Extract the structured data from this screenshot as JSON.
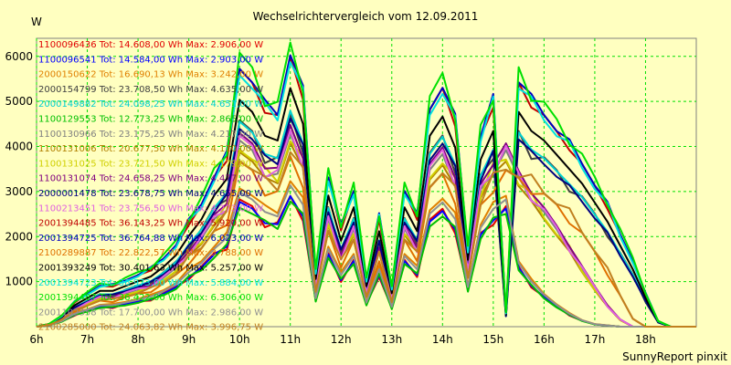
{
  "chart_data": {
    "type": "line",
    "title": "Wechselrichtervergleich vom 12.09.2011",
    "ylabel": "W",
    "footer": "SunnyReport pinxit",
    "xlim": [
      6,
      19
    ],
    "ylim": [
      0,
      6400
    ],
    "grid": true,
    "legend_position": "top-left, overlaid",
    "x_ticks": [
      6,
      7,
      8,
      9,
      10,
      11,
      12,
      13,
      14,
      15,
      16,
      17,
      18
    ],
    "x_tick_labels": [
      "6h",
      "7h",
      "8h",
      "9h",
      "10h",
      "11h",
      "12h",
      "13h",
      "14h",
      "15h",
      "16h",
      "17h",
      "18h"
    ],
    "y_ticks": [
      1000,
      2000,
      3000,
      4000,
      5000,
      6000
    ],
    "y_tick_labels": [
      "1000",
      "2000",
      "3000",
      "4000",
      "5000",
      "6000"
    ],
    "colors": {
      "background": "#ffffc0",
      "grid": "#00e000",
      "axis": "#808080"
    },
    "x": [
      6.0,
      6.25,
      6.5,
      6.75,
      7.0,
      7.25,
      7.5,
      7.75,
      8.0,
      8.25,
      8.5,
      8.75,
      9.0,
      9.25,
      9.5,
      9.75,
      10.0,
      10.25,
      10.5,
      10.75,
      11.0,
      11.25,
      11.5,
      11.75,
      12.0,
      12.25,
      12.5,
      12.75,
      13.0,
      13.25,
      13.5,
      13.75,
      14.0,
      14.25,
      14.5,
      14.75,
      15.0,
      15.25,
      15.5,
      15.75,
      16.0,
      16.25,
      16.5,
      16.75,
      17.0,
      17.25,
      17.5,
      17.75,
      18.0,
      18.25,
      18.5,
      18.75,
      19.0
    ],
    "series": [
      {
        "name": "1100096436 Tot: 14.608,00 Wh Max: 2.906,00 W",
        "color": "#e00000",
        "scale": 0.46,
        "evening": "fast"
      },
      {
        "name": "1100096541 Tot: 14.584,00 Wh Max: 2.903,00 W",
        "color": "#0000ff",
        "scale": 0.46,
        "evening": "fast"
      },
      {
        "name": "2000150622 Tot: 16.690,13 Wh Max: 3.242,00 W",
        "color": "#e08000",
        "scale": 0.52,
        "evening": "fast"
      },
      {
        "name": "2000154799 Tot: 23.708,50 Wh Max: 4.635,00 W",
        "color": "#404040",
        "scale": 0.75,
        "evening": "full"
      },
      {
        "name": "2000149882 Tot: 24.098,25 Wh Max: 4.651,00 W",
        "color": "#00d0d0",
        "scale": 0.76,
        "evening": "full"
      },
      {
        "name": "1100129553 Tot: 12.773,25 Wh Max: 2.865,00 W",
        "color": "#00c000",
        "scale": 0.45,
        "evening": "fast"
      },
      {
        "name": "1100130966 Tot: 23.175,25 Wh Max: 4.217,00 W",
        "color": "#808080",
        "scale": 0.68,
        "evening": "mid"
      },
      {
        "name": "1100131006 Tot: 20.677,50 Wh Max: 4.110,00 W",
        "color": "#b08000",
        "scale": 0.65,
        "evening": "mid"
      },
      {
        "name": "1100131025 Tot: 23.721,50 Wh Max: 4.179,00 W",
        "color": "#d0d000",
        "scale": 0.67,
        "evening": "mid"
      },
      {
        "name": "1100131074 Tot: 24.658,25 Wh Max: 4.477,00 W",
        "color": "#800080",
        "scale": 0.71,
        "evening": "mid"
      },
      {
        "name": "2000001478 Tot: 23.678,75 Wh Max: 4.655,00 W",
        "color": "#000080",
        "scale": 0.74,
        "evening": "full"
      },
      {
        "name": "1100213451 Tot: 23.756,50 Wh Max: 4.273,00 W",
        "color": "#e060e0",
        "scale": 0.69,
        "evening": "mid"
      },
      {
        "name": "2001394485 Tot: 36.143,25 Wh Max: 5.920,00 W",
        "color": "#c00000",
        "scale": 0.95,
        "evening": "full"
      },
      {
        "name": "2001394725 Tot: 36.764,88 Wh Max: 6.023,00 W",
        "color": "#0000c0",
        "scale": 0.97,
        "evening": "full"
      },
      {
        "name": "2100289887 Tot: 22.822,57 Wh Max: 3.788,00 W",
        "color": "#e07000",
        "scale": 0.6,
        "evening": "late"
      },
      {
        "name": "2001393249 Tot: 30.401,63 Wh Max: 5.257,00 W",
        "color": "#000000",
        "scale": 0.84,
        "evening": "full"
      },
      {
        "name": "2001394723 Tot: 36.973,00 Wh Max: 5.884,00 W",
        "color": "#00e0e0",
        "scale": 0.95,
        "evening": "full"
      },
      {
        "name": "2001394487 Tot: 36.422,00 Wh Max: 6.306,00 W",
        "color": "#00e000",
        "scale": 1.0,
        "evening": "full"
      },
      {
        "name": "2001102358 Tot: 17.700,00 Wh Max: 2.986,00 W",
        "color": "#909090",
        "scale": 0.5,
        "evening": "fast"
      },
      {
        "name": "2100285000 Tot: 24.063,82 Wh Max: 3.996,75 W",
        "color": "#c08020",
        "scale": 0.63,
        "evening": "late"
      }
    ]
  }
}
